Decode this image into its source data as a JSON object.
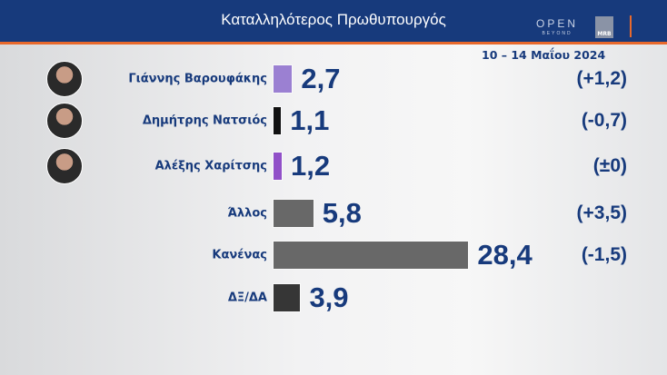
{
  "header": {
    "title": "Καταλληλότερος Πρωθυπουργός",
    "logo_open": "OPEN",
    "logo_open_sub": "BEYOND",
    "logo_mrb": "MRB"
  },
  "chart_data": {
    "type": "bar",
    "orientation": "horizontal",
    "subtitle": "10 – 14 Μαΐου 2024",
    "categories": [
      "Γιάννης Βαρουφάκης",
      "Δημήτρης Νατσιός",
      "Αλέξης Χαρίτσης",
      "Άλλος",
      "Κανένας",
      "ΔΞ/ΔΑ"
    ],
    "values": [
      2.7,
      1.1,
      1.2,
      5.8,
      28.4,
      3.9
    ],
    "value_labels": [
      "2,7",
      "1,1",
      "1,2",
      "5,8",
      "28,4",
      "3,9"
    ],
    "changes": [
      "(+1,2)",
      "(-0,7)",
      "(±0)",
      "(+3,5)",
      "(-1,5)",
      ""
    ],
    "colors": [
      "#9b80d2",
      "#111111",
      "#9150c8",
      "#686868",
      "#686868",
      "#363636"
    ],
    "has_photo": [
      true,
      true,
      true,
      false,
      false,
      false
    ],
    "grid": false
  }
}
